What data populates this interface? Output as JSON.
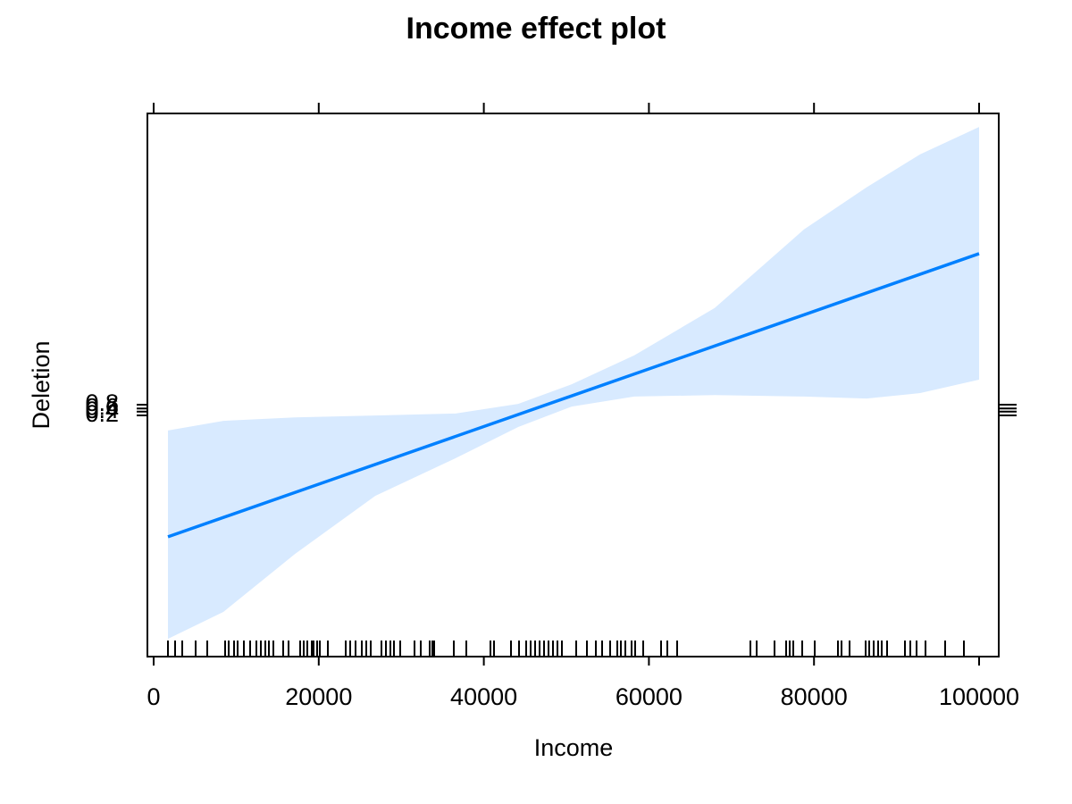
{
  "chart_data": {
    "type": "effect",
    "title": "Income effect plot",
    "x_label": "Income",
    "y_label": "Deletion",
    "xlim": [
      -758,
      102381
    ],
    "xticks": [
      0,
      20000,
      40000,
      60000,
      80000,
      100000
    ],
    "ylim": [
      -64,
      77
    ],
    "yticks": [
      {
        "value": -1.386,
        "label": "0.2"
      },
      {
        "value": -0.405,
        "label": "0.4"
      },
      {
        "value": 0.405,
        "label": "0.6"
      },
      {
        "value": 1.386,
        "label": "0.8"
      }
    ],
    "line": {
      "color": "#0080ff",
      "x": [
        1732,
        100000
      ],
      "values": [
        -32.9,
        40.6
      ]
    },
    "band": {
      "color": "#d8eaff",
      "x": [
        1732,
        8442,
        17100,
        26840,
        36580,
        44160,
        50650,
        58230,
        67970,
        78790,
        86360,
        92860,
        100000
      ],
      "upper": [
        -5.3,
        -2.8,
        -1.9,
        -1.4,
        -0.9,
        1.6,
        6.7,
        14.2,
        26.5,
        46.9,
        57.8,
        66.4,
        73.5
      ],
      "lower": [
        -59.4,
        -52.4,
        -37.4,
        -22.3,
        -12.5,
        -4.4,
        0.9,
        3.5,
        3.9,
        3.5,
        3.0,
        4.4,
        7.9
      ]
    },
    "rug": [
      1732,
      2597,
      3463,
      5087,
      6494,
      8658,
      9091,
      9740,
      10173,
      10931,
      11688,
      12446,
      12987,
      13528,
      13961,
      14502,
      15693,
      16342,
      17749,
      18182,
      18615,
      19156,
      19372,
      19805,
      20130,
      21104,
      23268,
      23810,
      24459,
      25216,
      25758,
      26299,
      27597,
      28139,
      28680,
      29113,
      29870,
      31602,
      32359,
      33442,
      33766,
      33983,
      36364,
      37879,
      40801,
      41234,
      43290,
      44264,
      45130,
      45671,
      46212,
      46753,
      47294,
      47835,
      48377,
      48918,
      49459,
      51190,
      52489,
      53571,
      54329,
      55303,
      56169,
      56602,
      57143,
      57900,
      58333,
      59307,
      61472,
      62229,
      63420,
      72294,
      73052,
      75216,
      76623,
      77056,
      77489,
      78571,
      80087,
      82900,
      83333,
      84307,
      86255,
      86688,
      87229,
      87771,
      88203,
      88853,
      91017,
      91667,
      92424,
      93506,
      95887,
      98160
    ]
  }
}
